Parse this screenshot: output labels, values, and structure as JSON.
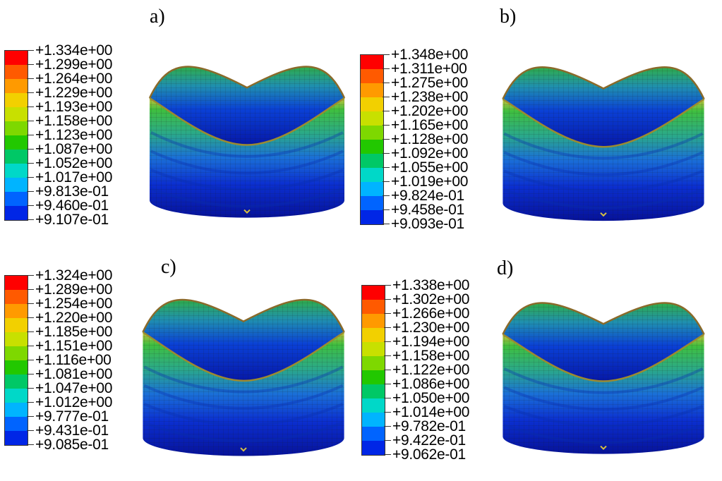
{
  "panels": [
    {
      "label": "a)",
      "legend": [
        "+1.334e+00",
        "+1.299e+00",
        "+1.264e+00",
        "+1.229e+00",
        "+1.193e+00",
        "+1.158e+00",
        "+1.123e+00",
        "+1.087e+00",
        "+1.052e+00",
        "+1.017e+00",
        "+9.813e-01",
        "+9.460e-01",
        "+9.107e-01"
      ]
    },
    {
      "label": "b)",
      "legend": [
        "+1.348e+00",
        "+1.311e+00",
        "+1.275e+00",
        "+1.238e+00",
        "+1.202e+00",
        "+1.165e+00",
        "+1.128e+00",
        "+1.092e+00",
        "+1.055e+00",
        "+1.019e+00",
        "+9.824e-01",
        "+9.458e-01",
        "+9.093e-01"
      ]
    },
    {
      "label": "c)",
      "legend": [
        "+1.324e+00",
        "+1.289e+00",
        "+1.254e+00",
        "+1.220e+00",
        "+1.185e+00",
        "+1.151e+00",
        "+1.116e+00",
        "+1.081e+00",
        "+1.047e+00",
        "+1.012e+00",
        "+9.777e-01",
        "+9.431e-01",
        "+9.085e-01"
      ]
    },
    {
      "label": "d)",
      "legend": [
        "+1.338e+00",
        "+1.302e+00",
        "+1.266e+00",
        "+1.230e+00",
        "+1.194e+00",
        "+1.158e+00",
        "+1.122e+00",
        "+1.086e+00",
        "+1.050e+00",
        "+1.014e+00",
        "+9.782e-01",
        "+9.422e-01",
        "+9.062e-01"
      ]
    }
  ],
  "colors": {
    "scale": [
      "#ff0000",
      "#ff5a00",
      "#ff9a00",
      "#f2d000",
      "#c8e000",
      "#7ed800",
      "#22c800",
      "#00c866",
      "#00d8c8",
      "#00b4ff",
      "#0064ff",
      "#0026e6",
      "#0000c8"
    ],
    "mesh_line": "#1b1b1b"
  }
}
